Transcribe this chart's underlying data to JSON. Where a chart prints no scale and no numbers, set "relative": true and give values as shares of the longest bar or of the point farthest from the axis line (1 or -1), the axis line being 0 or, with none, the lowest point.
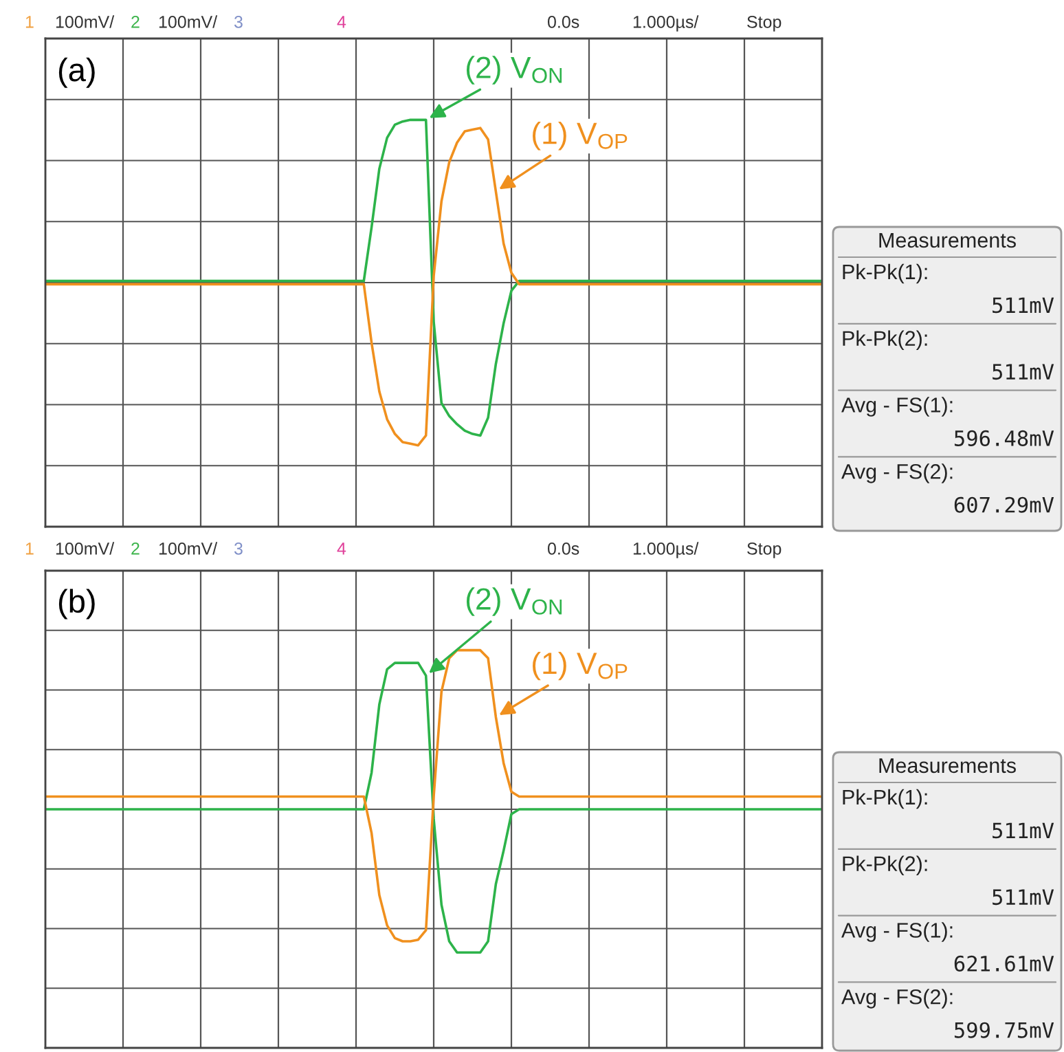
{
  "chart_data": [
    {
      "type": "line",
      "relative": true,
      "grid": true,
      "legend": false,
      "categories": [
        null,
        null,
        null,
        null,
        null,
        null,
        null,
        null,
        null,
        null,
        null,
        null,
        null,
        null,
        null,
        null,
        null,
        null,
        null,
        null,
        null,
        null,
        null,
        null,
        null,
        null,
        null,
        null,
        null,
        null,
        null,
        null,
        null,
        null,
        null,
        null,
        null,
        null,
        null,
        null,
        null,
        null,
        null,
        null,
        null,
        null,
        null,
        null,
        null,
        null,
        null,
        null,
        null,
        null,
        null,
        null,
        null,
        null,
        null,
        null,
        null,
        null,
        null,
        null,
        null,
        null,
        null,
        null,
        null,
        null,
        null,
        null,
        null,
        null,
        null,
        null,
        null,
        null,
        null,
        null,
        null,
        null,
        null,
        null,
        null,
        null,
        null,
        null,
        null,
        null,
        null,
        null,
        null,
        null,
        null,
        null,
        null,
        null,
        null,
        null,
        null
      ],
      "series": [
        {
          "name": "(2) V$_{ON}$",
          "color": "#2db34a",
          "values": [
            0.01,
            0.01,
            0.01,
            0.01,
            0.01,
            0.01,
            0.01,
            0.01,
            0.01,
            0.01,
            0.01,
            0.01,
            0.01,
            0.01,
            0.01,
            0.01,
            0.01,
            0.01,
            0.01,
            0.01,
            0.01,
            0.01,
            0.01,
            0.01,
            0.01,
            0.01,
            0.01,
            0.01,
            0.01,
            0.01,
            0.01,
            0.01,
            0.01,
            0.01,
            0.01,
            0.01,
            0.01,
            0.01,
            0.01,
            0.01,
            0.01,
            0.01,
            0.34,
            0.7,
            0.89,
            0.97,
            0.99,
            1.0,
            1.0,
            1.0,
            -0.24,
            -0.74,
            -0.82,
            -0.87,
            -0.91,
            -0.93,
            -0.94,
            -0.83,
            -0.5,
            -0.25,
            -0.05,
            0.01,
            0.01,
            0.01,
            0.01,
            0.01,
            0.01,
            0.01,
            0.01,
            0.01,
            0.01,
            0.01,
            0.01,
            0.01,
            0.01,
            0.01,
            0.01,
            0.01,
            0.01,
            0.01,
            0.01,
            0.01,
            0.01,
            0.01,
            0.01,
            0.01,
            0.01,
            0.01,
            0.01,
            0.01,
            0.01,
            0.01,
            0.01,
            0.01,
            0.01,
            0.01,
            0.01,
            0.01,
            0.01,
            0.01,
            0.01
          ]
        },
        {
          "name": "(1) V$_{OP}$",
          "color": "#f0901e",
          "values": [
            -0.01,
            -0.01,
            -0.01,
            -0.01,
            -0.01,
            -0.01,
            -0.01,
            -0.01,
            -0.01,
            -0.01,
            -0.01,
            -0.01,
            -0.01,
            -0.01,
            -0.01,
            -0.01,
            -0.01,
            -0.01,
            -0.01,
            -0.01,
            -0.01,
            -0.01,
            -0.01,
            -0.01,
            -0.01,
            -0.01,
            -0.01,
            -0.01,
            -0.01,
            -0.01,
            -0.01,
            -0.01,
            -0.01,
            -0.01,
            -0.01,
            -0.01,
            -0.01,
            -0.01,
            -0.01,
            -0.01,
            -0.01,
            -0.01,
            -0.37,
            -0.67,
            -0.84,
            -0.93,
            -0.98,
            -0.99,
            -1.0,
            -0.94,
            0.04,
            0.5,
            0.74,
            0.86,
            0.93,
            0.94,
            0.95,
            0.88,
            0.56,
            0.24,
            0.06,
            -0.01,
            -0.01,
            -0.01,
            -0.01,
            -0.01,
            -0.01,
            -0.01,
            -0.01,
            -0.01,
            -0.01,
            -0.01,
            -0.01,
            -0.01,
            -0.01,
            -0.01,
            -0.01,
            -0.01,
            -0.01,
            -0.01,
            -0.01,
            -0.01,
            -0.01,
            -0.01,
            -0.01,
            -0.01,
            -0.01,
            -0.01,
            -0.01,
            -0.01,
            -0.01,
            -0.01,
            -0.01,
            -0.01,
            -0.01,
            -0.01,
            -0.01,
            -0.01,
            -0.01,
            -0.01,
            -0.01
          ]
        }
      ],
      "annotations": [
        "(a)",
        "1",
        "100mV/",
        "2",
        "100mV/",
        "3",
        "4",
        "0.0s",
        "1.000µs/",
        "Stop",
        "Measurements",
        "Pk-Pk(1):",
        "511mV",
        "Pk-Pk(2):",
        "511mV",
        "Avg - FS(1):",
        "596.48mV",
        "Avg - FS(2):",
        "607.29mV"
      ]
    },
    {
      "type": "line",
      "relative": true,
      "grid": true,
      "legend": false,
      "categories": [
        null,
        null,
        null,
        null,
        null,
        null,
        null,
        null,
        null,
        null,
        null,
        null,
        null,
        null,
        null,
        null,
        null,
        null,
        null,
        null,
        null,
        null,
        null,
        null,
        null,
        null,
        null,
        null,
        null,
        null,
        null,
        null,
        null,
        null,
        null,
        null,
        null,
        null,
        null,
        null,
        null,
        null,
        null,
        null,
        null,
        null,
        null,
        null,
        null,
        null,
        null,
        null,
        null,
        null,
        null,
        null,
        null,
        null,
        null,
        null,
        null,
        null,
        null,
        null,
        null,
        null,
        null,
        null,
        null,
        null,
        null,
        null,
        null,
        null,
        null,
        null,
        null,
        null,
        null,
        null,
        null,
        null,
        null,
        null,
        null,
        null,
        null,
        null,
        null,
        null,
        null,
        null,
        null,
        null,
        null,
        null,
        null,
        null,
        null,
        null,
        null
      ],
      "series": [
        {
          "name": "(2) V$_{ON}$",
          "color": "#2db34a",
          "values": [
            0,
            0,
            0,
            0,
            0,
            0,
            0,
            0,
            0,
            0,
            0,
            0,
            0,
            0,
            0,
            0,
            0,
            0,
            0,
            0,
            0,
            0,
            0,
            0,
            0,
            0,
            0,
            0,
            0,
            0,
            0,
            0,
            0,
            0,
            0,
            0,
            0,
            0,
            0,
            0,
            0,
            0,
            0.23,
            0.66,
            0.88,
            0.92,
            0.92,
            0.92,
            0.92,
            0.84,
            -0.06,
            -0.6,
            -0.83,
            -0.9,
            -0.9,
            -0.9,
            -0.9,
            -0.83,
            -0.47,
            -0.26,
            -0.03,
            0,
            0,
            0,
            0,
            0,
            0,
            0,
            0,
            0,
            0,
            0,
            0,
            0,
            0,
            0,
            0,
            0,
            0,
            0,
            0,
            0,
            0,
            0,
            0,
            0,
            0,
            0,
            0,
            0,
            0,
            0,
            0,
            0,
            0,
            0,
            0,
            0,
            0,
            0,
            0
          ]
        },
        {
          "name": "(1) V$_{OP}$",
          "color": "#f0901e",
          "values": [
            0.08,
            0.08,
            0.08,
            0.08,
            0.08,
            0.08,
            0.08,
            0.08,
            0.08,
            0.08,
            0.08,
            0.08,
            0.08,
            0.08,
            0.08,
            0.08,
            0.08,
            0.08,
            0.08,
            0.08,
            0.08,
            0.08,
            0.08,
            0.08,
            0.08,
            0.08,
            0.08,
            0.08,
            0.08,
            0.08,
            0.08,
            0.08,
            0.08,
            0.08,
            0.08,
            0.08,
            0.08,
            0.08,
            0.08,
            0.08,
            0.08,
            0.08,
            -0.15,
            -0.54,
            -0.73,
            -0.81,
            -0.83,
            -0.83,
            -0.82,
            -0.76,
            0.08,
            0.74,
            0.95,
            1.0,
            1.0,
            1.0,
            1.0,
            0.95,
            0.58,
            0.29,
            0.11,
            0.08,
            0.08,
            0.08,
            0.08,
            0.08,
            0.08,
            0.08,
            0.08,
            0.08,
            0.08,
            0.08,
            0.08,
            0.08,
            0.08,
            0.08,
            0.08,
            0.08,
            0.08,
            0.08,
            0.08,
            0.08,
            0.08,
            0.08,
            0.08,
            0.08,
            0.08,
            0.08,
            0.08,
            0.08,
            0.08,
            0.08,
            0.08,
            0.08,
            0.08,
            0.08,
            0.08,
            0.08,
            0.08,
            0.08,
            0.08
          ]
        }
      ],
      "annotations": [
        "(b)",
        "1",
        "100mV/",
        "2",
        "100mV/",
        "3",
        "4",
        "0.0s",
        "1.000µs/",
        "Stop",
        "Measurements",
        "Pk-Pk(1):",
        "511mV",
        "Pk-Pk(2):",
        "511mV",
        "Avg - FS(1):",
        "621.61mV",
        "Avg - FS(2):",
        "599.75mV"
      ]
    }
  ]
}
